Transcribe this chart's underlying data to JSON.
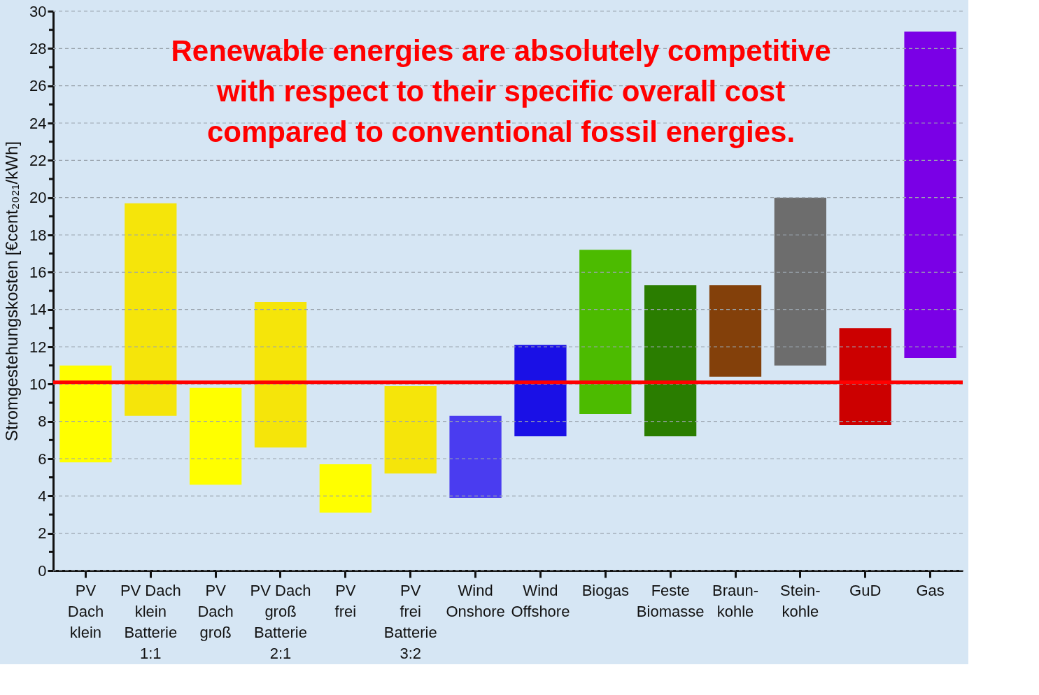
{
  "chart_data": {
    "type": "bar",
    "ylabel": "Stromgestehungskosten [€cent₂₀₂₁/kWh]",
    "annotations": [
      "Renewable energies are absolutely competitive\nwith respect to their specific overall cost\ncompared to conventional fossil energies."
    ],
    "categories": [
      "PV\nDach\nklein",
      "PV Dach\nklein\nBatterie\n1:1",
      "PV\nDach\ngroß",
      "PV Dach\ngroß\nBatterie\n2:1",
      "PV\nfrei",
      "PV\nfrei\nBatterie\n3:2",
      "Wind\nOnshore",
      "Wind\nOffshore",
      "Biogas",
      "Feste\nBiomasse",
      "Braun-\nkohle",
      "Stein-\nkohle",
      "GuD",
      "Gas"
    ],
    "base": [
      5.8,
      8.3,
      4.6,
      6.6,
      3.1,
      5.2,
      3.9,
      7.2,
      8.4,
      7.2,
      10.4,
      11.0,
      7.8,
      11.4
    ],
    "values": [
      5.2,
      11.4,
      5.2,
      7.8,
      2.6,
      4.7,
      4.4,
      4.9,
      8.8,
      8.1,
      4.9,
      9.0,
      5.2,
      17.5
    ],
    "colors": [
      "#ffff00",
      "#f5e50a",
      "#ffff00",
      "#f5e50a",
      "#ffff00",
      "#f5e50a",
      "#4a3cf0",
      "#1a10e6",
      "#4cbb00",
      "#2a7d00",
      "#83400a",
      "#6d6d6d",
      "#cc0000",
      "#7a00e6"
    ],
    "ylim": [
      0,
      30
    ],
    "yticks": [
      0,
      {
        "value": 1,
        "label": null
      },
      2,
      {
        "value": 3,
        "label": null
      },
      4,
      {
        "value": 5,
        "label": null
      },
      6,
      {
        "value": 7,
        "label": null
      },
      8,
      {
        "value": 9,
        "label": null
      },
      10,
      {
        "value": 11,
        "label": null
      },
      12,
      {
        "value": 13,
        "label": null
      },
      14,
      {
        "value": 15,
        "label": null
      },
      16,
      {
        "value": 17,
        "label": null
      },
      18,
      {
        "value": 19,
        "label": null
      },
      20,
      {
        "value": 21,
        "label": null
      },
      22,
      {
        "value": 23,
        "label": null
      },
      24,
      {
        "value": 25,
        "label": null
      },
      26,
      {
        "value": 27,
        "label": null
      },
      28,
      {
        "value": 29,
        "label": null
      },
      30
    ],
    "ref_lines": [
      {
        "axis": "y",
        "value": 10.1,
        "color": "#ff0000"
      }
    ],
    "grid": "y"
  }
}
